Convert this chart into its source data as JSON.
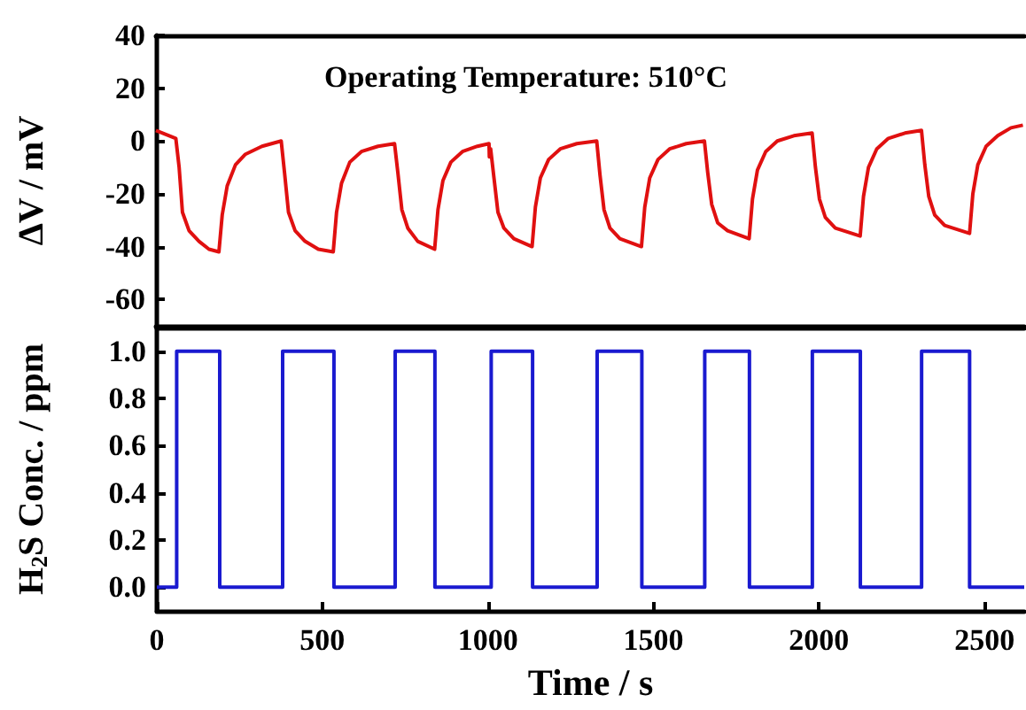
{
  "chart_data": [
    {
      "type": "line",
      "ylabel": "ΔV / mV",
      "annotations": [
        "Operating Temperature: 510°C"
      ],
      "xlim": [
        0,
        2620
      ],
      "ylim": [
        -70,
        40
      ],
      "yticks": [
        -60,
        -40,
        -20,
        0,
        20,
        40
      ],
      "tick_labels": "y",
      "marker": "none",
      "line_style": "solid",
      "grid": false,
      "series": [
        {
          "color": "#e01010",
          "x": [
            0,
            40,
            60,
            70,
            80,
            100,
            130,
            160,
            190,
            200,
            215,
            240,
            270,
            320,
            378,
            388,
            400,
            420,
            450,
            490,
            535,
            545,
            560,
            585,
            620,
            670,
            720,
            730,
            742,
            760,
            790,
            841,
            851,
            866,
            890,
            925,
            970,
            1005,
            1006,
            1010,
            1020,
            1032,
            1050,
            1080,
            1135,
            1145,
            1160,
            1185,
            1220,
            1270,
            1330,
            1340,
            1352,
            1370,
            1400,
            1465,
            1475,
            1490,
            1515,
            1550,
            1600,
            1655,
            1665,
            1677,
            1695,
            1725,
            1790,
            1800,
            1815,
            1840,
            1875,
            1925,
            1980,
            1990,
            2002,
            2020,
            2050,
            2125,
            2135,
            2150,
            2175,
            2210,
            2260,
            2310,
            2320,
            2332,
            2350,
            2380,
            2455,
            2465,
            2480,
            2505,
            2540,
            2580,
            2616
          ],
          "values": [
            4,
            2,
            1,
            -10,
            -27,
            -34,
            -38,
            -41,
            -42,
            -28,
            -17,
            -9,
            -5,
            -2,
            0,
            -12,
            -27,
            -34,
            -38,
            -41,
            -42,
            -27,
            -16,
            -8,
            -4,
            -2,
            -1,
            -12,
            -26,
            -33,
            -38,
            -41,
            -26,
            -15,
            -8,
            -4,
            -2,
            -1,
            -6,
            -3,
            -14,
            -27,
            -33,
            -37,
            -40,
            -25,
            -14,
            -7,
            -3,
            -1,
            0,
            -13,
            -26,
            -33,
            -37,
            -40,
            -25,
            -14,
            -7,
            -3,
            -1,
            0,
            -12,
            -24,
            -31,
            -34,
            -37,
            -22,
            -11,
            -4,
            0,
            2,
            3,
            -10,
            -22,
            -29,
            -33,
            -36,
            -21,
            -10,
            -3,
            1,
            3,
            4,
            -9,
            -21,
            -28,
            -32,
            -35,
            -20,
            -9,
            -2,
            2,
            5,
            6
          ]
        }
      ]
    },
    {
      "type": "step",
      "ylabel": "H$_{2}$S Conc. / ppm",
      "xlabel": "Time / s",
      "xlim": [
        0,
        2620
      ],
      "xticks": [
        0,
        500,
        1000,
        1500,
        2000,
        2500
      ],
      "ylim": [
        -0.1,
        1.1
      ],
      "yticks": [
        {
          "value": 0,
          "label": "0.0"
        },
        {
          "value": 0.2,
          "label": "0.2"
        },
        {
          "value": 0.4,
          "label": "0.4"
        },
        {
          "value": 0.6,
          "label": "0.6"
        },
        {
          "value": 0.8,
          "label": "0.8"
        },
        {
          "value": 1,
          "label": "1.0"
        }
      ],
      "marker": "none",
      "line_style": "solid",
      "grid": false,
      "series": [
        {
          "color": "#1a1ad0",
          "x": [
            0,
            60,
            190,
            380,
            535,
            720,
            840,
            1010,
            1135,
            1330,
            1465,
            1655,
            1790,
            1980,
            2125,
            2310,
            2455,
            2620
          ],
          "values": [
            0,
            1,
            0,
            1,
            0,
            1,
            0,
            1,
            0,
            1,
            0,
            1,
            0,
            1,
            0,
            1,
            0,
            0
          ]
        }
      ]
    }
  ]
}
